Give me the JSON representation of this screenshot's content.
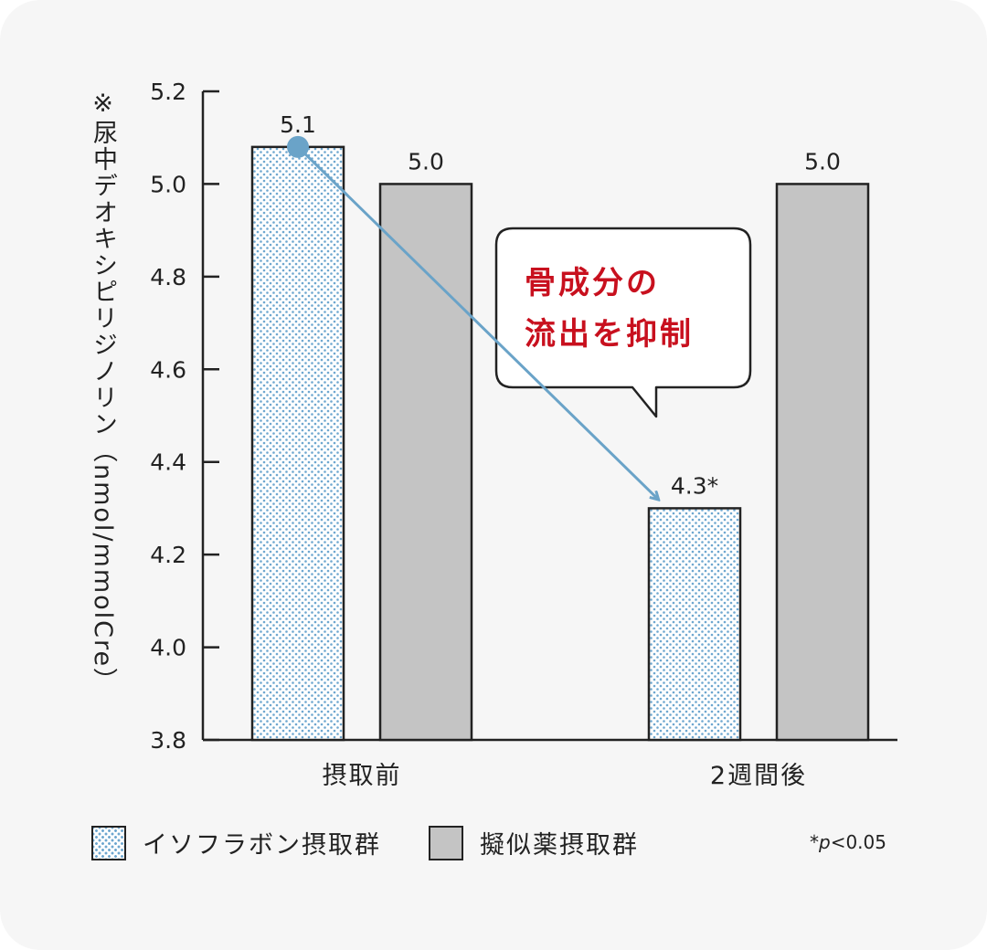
{
  "chart_data": {
    "type": "bar",
    "ylabel": "※尿中デオキシピリジノリン（nmol/mmolCre）",
    "ylim": [
      3.8,
      5.2
    ],
    "yticks": [
      "5.2",
      "5.0",
      "4.8",
      "4.6",
      "4.4",
      "4.2",
      "4.0",
      "3.8"
    ],
    "categories": [
      "摂取前",
      "2週間後"
    ],
    "series": [
      {
        "name": "イソフラボン摂取群",
        "values": [
          5.08,
          4.3
        ],
        "labels": [
          "5.1",
          "4.3*"
        ],
        "pattern": "dotted"
      },
      {
        "name": "擬似薬摂取群",
        "values": [
          5.0,
          5.0
        ],
        "labels": [
          "5.0",
          "5.0"
        ],
        "pattern": "solid"
      }
    ],
    "grid": false,
    "legend_position": "bottom",
    "annotation": {
      "lines": [
        "骨成分の",
        "流出を抑制"
      ]
    },
    "footnote": {
      "star": "*",
      "p": "p",
      "rest": "<0.05"
    }
  },
  "colors": {
    "background": "#f6f6f6",
    "bar_gray": "#c4c4c4",
    "dot_blue": "#6ea7cf",
    "arrow_blue": "#6aa3c8",
    "callout_red": "#c8101e",
    "axis": "#222222"
  }
}
